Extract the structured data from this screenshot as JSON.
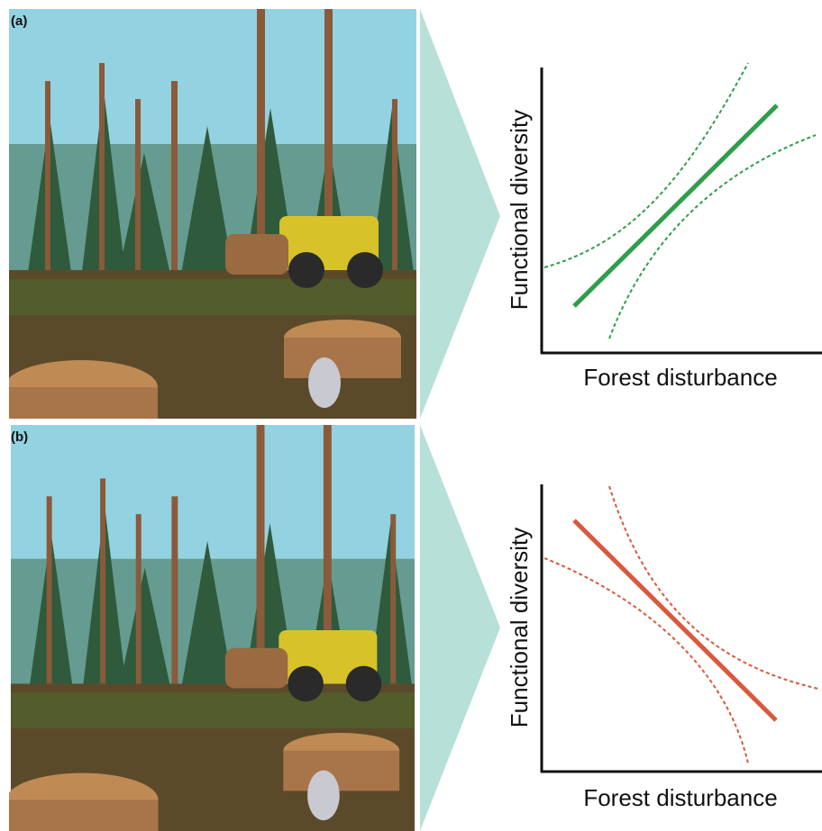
{
  "panels": [
    {
      "label": "(a)",
      "y_axis_label": "Functional diversity",
      "x_axis_label": "Forest disturbance"
    },
    {
      "label": "(b)",
      "y_axis_label": "Functional diversity",
      "x_axis_label": "Forest disturbance"
    }
  ]
}
